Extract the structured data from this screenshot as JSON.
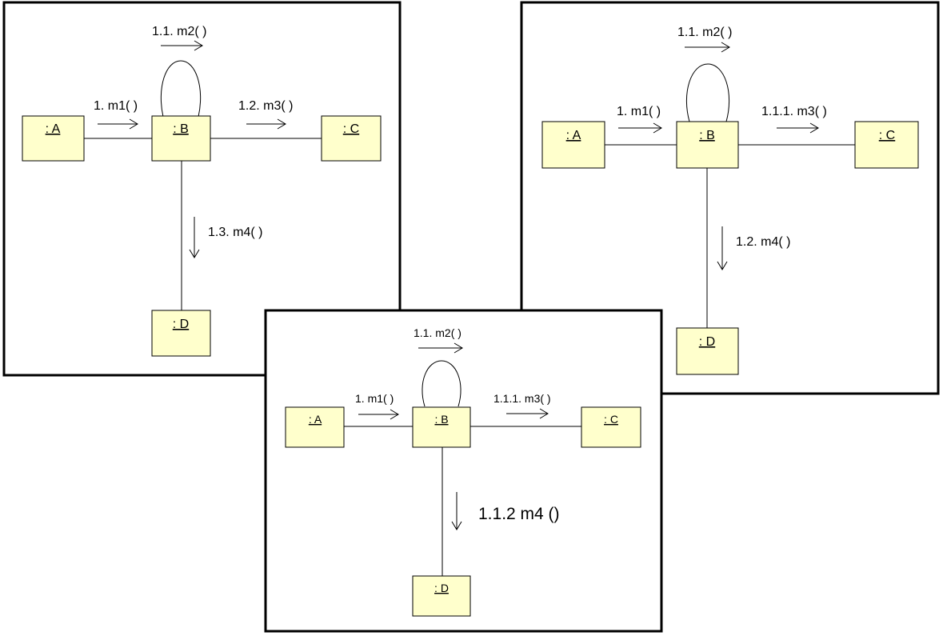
{
  "diagrams": [
    {
      "objects": {
        "a": ": A",
        "b": ": B",
        "c": ": C",
        "d": ": D"
      },
      "messages": {
        "m1": "1. m1( )",
        "m2": "1.1. m2( )",
        "m3": "1.2. m3( )",
        "m4": "1.3. m4( )"
      }
    },
    {
      "objects": {
        "a": ": A",
        "b": ": B",
        "c": ": C",
        "d": ": D"
      },
      "messages": {
        "m1": "1. m1( )",
        "m2": "1.1. m2( )",
        "m3": "1.1.1. m3( )",
        "m4": "1.2. m4( )"
      }
    },
    {
      "objects": {
        "a": ": A",
        "b": ": B",
        "c": ": C",
        "d": ": D"
      },
      "messages": {
        "m1": "1. m1( )",
        "m2": "1.1. m2( )",
        "m3": "1.1.1. m3( )",
        "m4": "1.1.2 m4 ()"
      }
    }
  ]
}
